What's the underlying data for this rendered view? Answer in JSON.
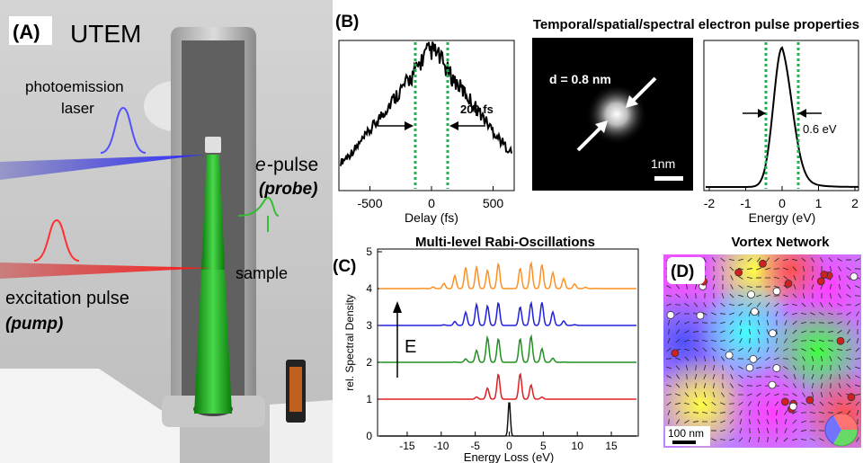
{
  "panel_a": {
    "label": "(A)",
    "title": "UTEM",
    "photoemission": "photoemission",
    "laser": "laser",
    "e_italic": "e",
    "pulse": "-pulse",
    "probe": "(probe)",
    "sample": "sample",
    "excitation": "excitation pulse",
    "pump": "(pump)"
  },
  "panel_b": {
    "label": "(B)",
    "title": "Temporal/spatial/spectral electron pulse properties",
    "delay": {
      "xlabel": "Delay (fs)",
      "xticks": [
        -500,
        0,
        500
      ],
      "annotation": "200 fs"
    },
    "image": {
      "annotation": "d = 0.8 nm",
      "scale": "1nm"
    },
    "energy": {
      "xlabel": "Energy (eV)",
      "xticks": [
        -2,
        -1,
        0,
        1,
        2
      ],
      "annotation": "0.6 eV"
    }
  },
  "panel_c": {
    "label": "(C)",
    "title": "Multi-level Rabi-Oscillations",
    "ylabel": "rel. Spectral Density",
    "xlabel": "Energy Loss (eV)",
    "xticks": [
      -15,
      -10,
      -5,
      0,
      5,
      10,
      15
    ],
    "yticks": [
      0,
      1,
      2,
      3,
      4,
      5
    ],
    "arrow_label": "E"
  },
  "panel_d": {
    "label": "(D)",
    "title": "Vortex Network",
    "scale": "100 nm"
  }
}
